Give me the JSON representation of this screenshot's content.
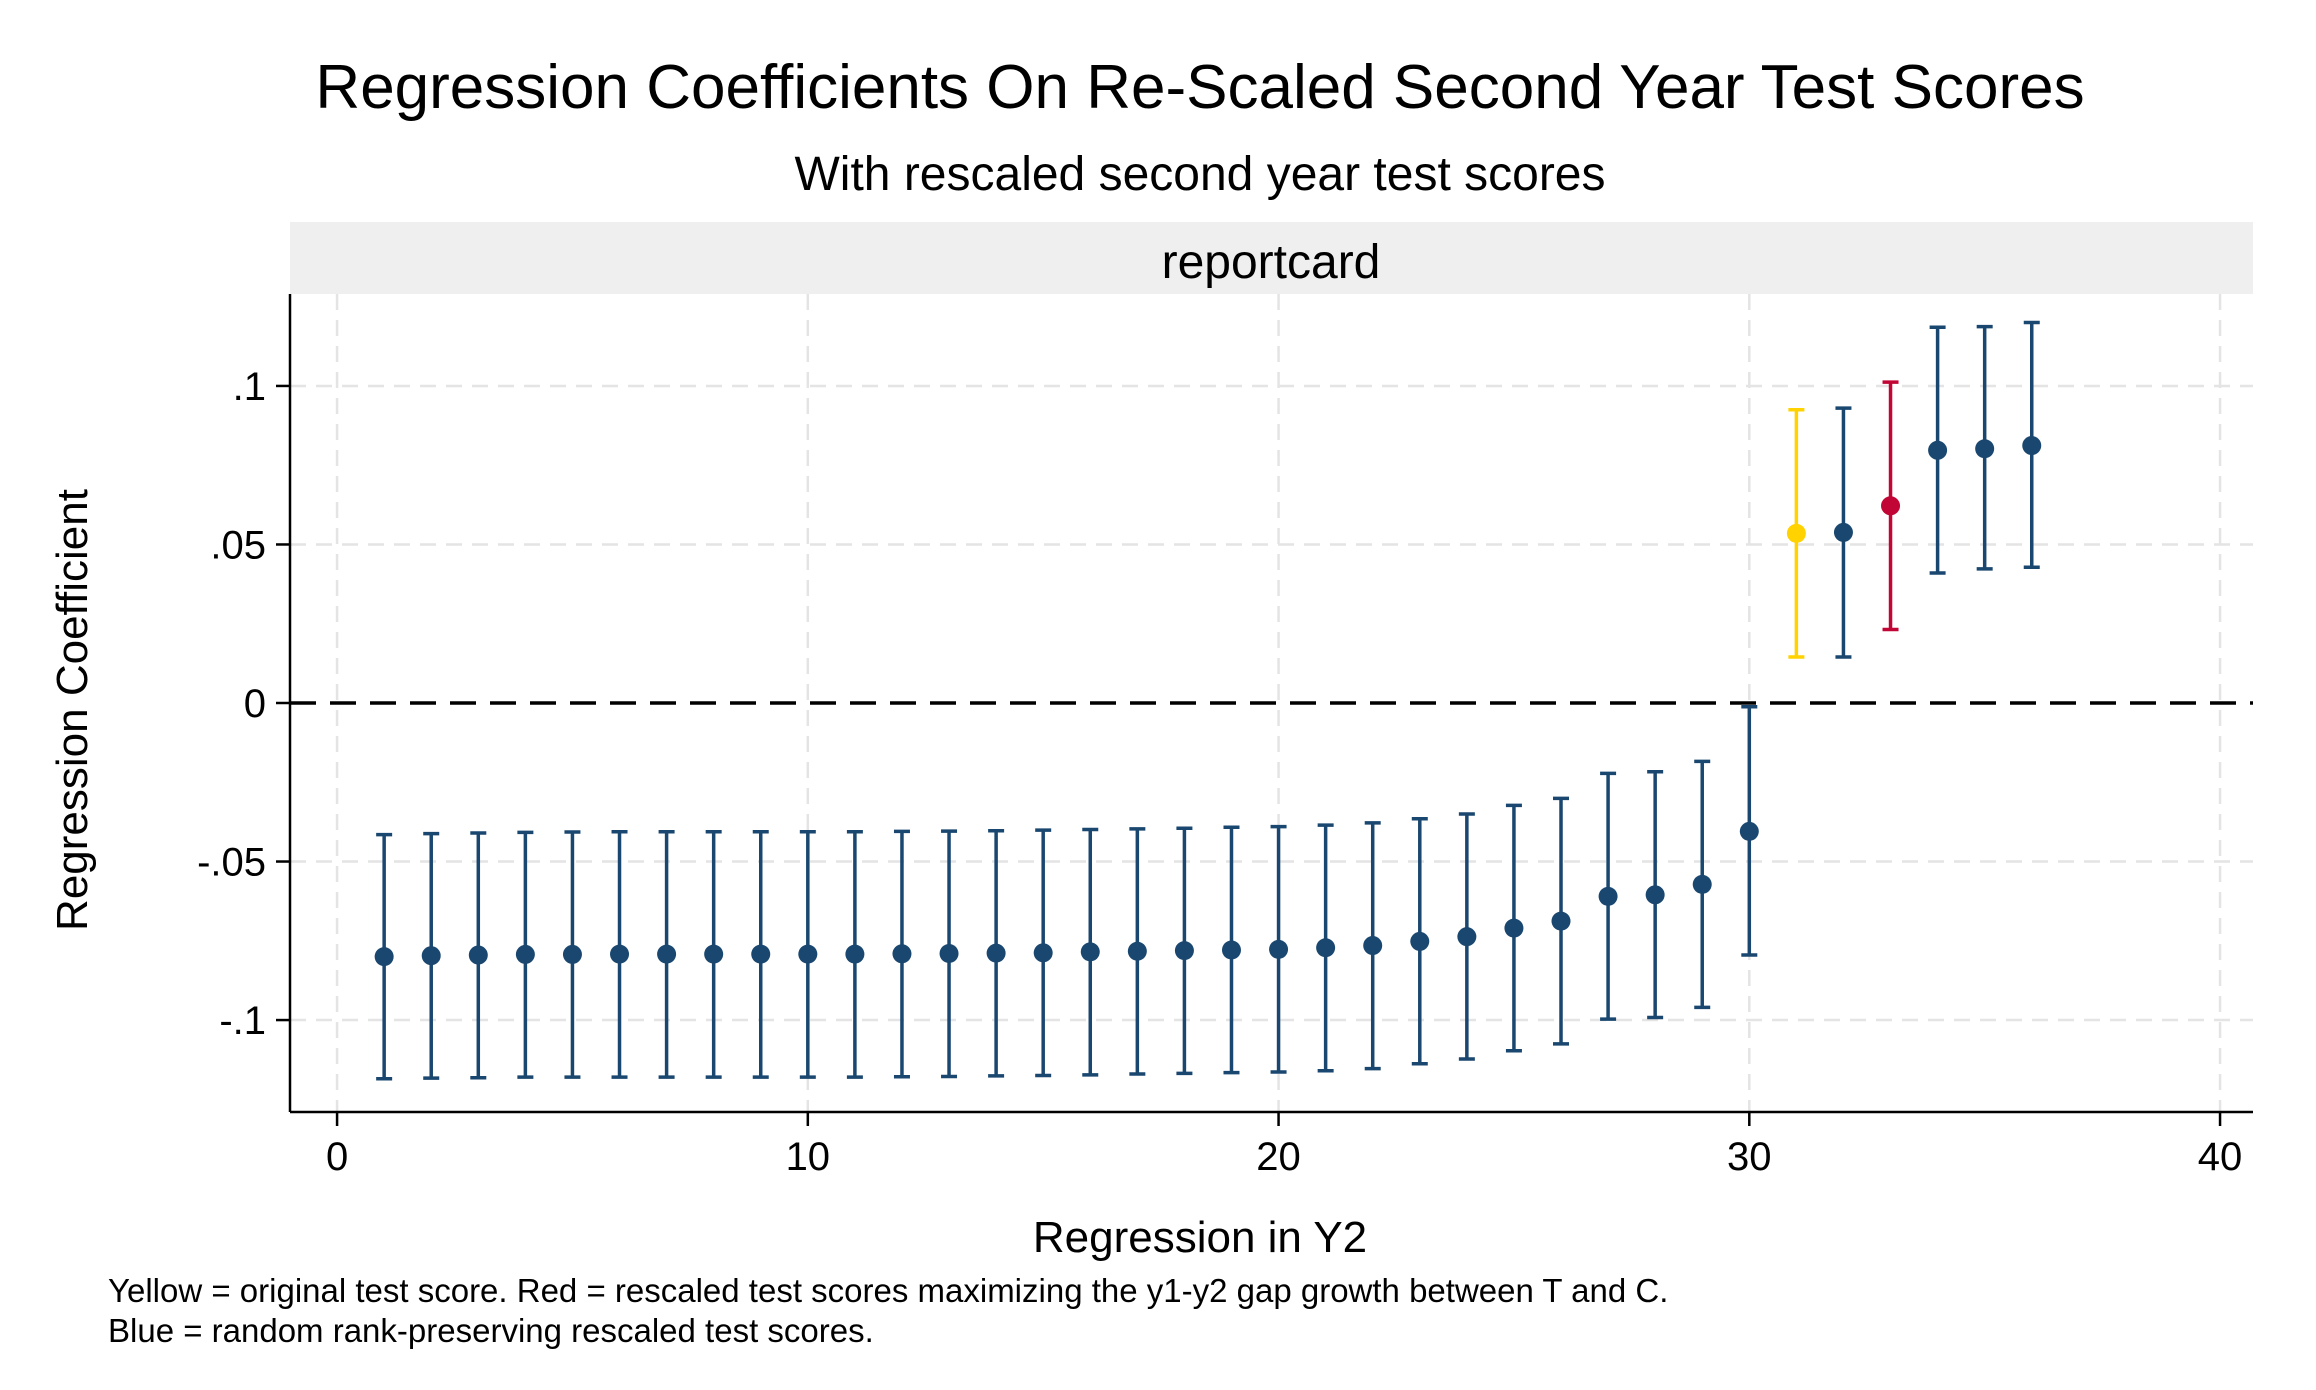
{
  "chart_data": {
    "type": "scatter",
    "title": "Regression Coefficients On Re-Scaled Second Year Test Scores",
    "subtitle": "With  rescaled second year test scores",
    "panel": "reportcard",
    "xlabel": "Regression in Y2",
    "ylabel": "Regression Coefficient",
    "xlim": [
      -1,
      40.7
    ],
    "ylim": [
      -0.129,
      0.129
    ],
    "xticks": [
      0,
      10,
      20,
      30,
      40
    ],
    "xtick_labels": [
      "0",
      "10",
      "20",
      "30",
      "40"
    ],
    "yticks": [
      -0.1,
      -0.05,
      0,
      0.05,
      0.1
    ],
    "ytick_labels": [
      "-.1",
      "-.05",
      "0",
      ".05",
      ".1"
    ],
    "grid": true,
    "reference_line": 0,
    "colors": {
      "blue": "#1a476f",
      "yellow": "#ffd200",
      "red": "#c10534",
      "grid": "#e4e4e4",
      "strip": "#efefef"
    },
    "points": [
      {
        "x": 1,
        "y": -0.08,
        "lo": -0.1185,
        "hi": -0.0415,
        "group": "blue"
      },
      {
        "x": 2,
        "y": -0.0797,
        "lo": -0.1183,
        "hi": -0.0412,
        "group": "blue"
      },
      {
        "x": 3,
        "y": -0.0795,
        "lo": -0.1182,
        "hi": -0.041,
        "group": "blue"
      },
      {
        "x": 4,
        "y": -0.0793,
        "lo": -0.118,
        "hi": -0.0408,
        "group": "blue"
      },
      {
        "x": 5,
        "y": -0.0793,
        "lo": -0.118,
        "hi": -0.0407,
        "group": "blue"
      },
      {
        "x": 6,
        "y": -0.0792,
        "lo": -0.118,
        "hi": -0.0406,
        "group": "blue"
      },
      {
        "x": 7,
        "y": -0.0792,
        "lo": -0.118,
        "hi": -0.0406,
        "group": "blue"
      },
      {
        "x": 8,
        "y": -0.0792,
        "lo": -0.118,
        "hi": -0.0406,
        "group": "blue"
      },
      {
        "x": 9,
        "y": -0.0792,
        "lo": -0.118,
        "hi": -0.0406,
        "group": "blue"
      },
      {
        "x": 10,
        "y": -0.0792,
        "lo": -0.118,
        "hi": -0.0406,
        "group": "blue"
      },
      {
        "x": 11,
        "y": -0.0792,
        "lo": -0.118,
        "hi": -0.0406,
        "group": "blue"
      },
      {
        "x": 12,
        "y": -0.0791,
        "lo": -0.1179,
        "hi": -0.0405,
        "group": "blue"
      },
      {
        "x": 13,
        "y": -0.079,
        "lo": -0.1178,
        "hi": -0.0404,
        "group": "blue"
      },
      {
        "x": 14,
        "y": -0.0789,
        "lo": -0.1176,
        "hi": -0.0403,
        "group": "blue"
      },
      {
        "x": 15,
        "y": -0.0788,
        "lo": -0.1175,
        "hi": -0.0401,
        "group": "blue"
      },
      {
        "x": 16,
        "y": -0.0785,
        "lo": -0.1173,
        "hi": -0.0399,
        "group": "blue"
      },
      {
        "x": 17,
        "y": -0.0783,
        "lo": -0.117,
        "hi": -0.0397,
        "group": "blue"
      },
      {
        "x": 18,
        "y": -0.0781,
        "lo": -0.1168,
        "hi": -0.0395,
        "group": "blue"
      },
      {
        "x": 19,
        "y": -0.0779,
        "lo": -0.1166,
        "hi": -0.0392,
        "group": "blue"
      },
      {
        "x": 20,
        "y": -0.0777,
        "lo": -0.1164,
        "hi": -0.039,
        "group": "blue"
      },
      {
        "x": 21,
        "y": -0.0772,
        "lo": -0.116,
        "hi": -0.0385,
        "group": "blue"
      },
      {
        "x": 22,
        "y": -0.0765,
        "lo": -0.1153,
        "hi": -0.0378,
        "group": "blue"
      },
      {
        "x": 23,
        "y": -0.0752,
        "lo": -0.1138,
        "hi": -0.0365,
        "group": "blue"
      },
      {
        "x": 24,
        "y": -0.0737,
        "lo": -0.1123,
        "hi": -0.035,
        "group": "blue"
      },
      {
        "x": 25,
        "y": -0.071,
        "lo": -0.1097,
        "hi": -0.0323,
        "group": "blue"
      },
      {
        "x": 26,
        "y": -0.0688,
        "lo": -0.1075,
        "hi": -0.0301,
        "group": "blue"
      },
      {
        "x": 27,
        "y": -0.061,
        "lo": -0.0997,
        "hi": -0.0222,
        "group": "blue"
      },
      {
        "x": 28,
        "y": -0.0605,
        "lo": -0.0992,
        "hi": -0.0217,
        "group": "blue"
      },
      {
        "x": 29,
        "y": -0.0572,
        "lo": -0.096,
        "hi": -0.0184,
        "group": "blue"
      },
      {
        "x": 30,
        "y": -0.0405,
        "lo": -0.0795,
        "hi": -0.0012,
        "group": "blue"
      },
      {
        "x": 31,
        "y": 0.0535,
        "lo": 0.0145,
        "hi": 0.0925,
        "group": "yellow"
      },
      {
        "x": 32,
        "y": 0.0538,
        "lo": 0.0145,
        "hi": 0.093,
        "group": "blue"
      },
      {
        "x": 33,
        "y": 0.0622,
        "lo": 0.0232,
        "hi": 0.1012,
        "group": "red"
      },
      {
        "x": 34,
        "y": 0.0797,
        "lo": 0.041,
        "hi": 0.1185,
        "group": "blue"
      },
      {
        "x": 35,
        "y": 0.0802,
        "lo": 0.0423,
        "hi": 0.1187,
        "group": "blue"
      },
      {
        "x": 36,
        "y": 0.0812,
        "lo": 0.0428,
        "hi": 0.12,
        "group": "blue"
      }
    ],
    "notes": [
      "Yellow = original test score. Red = rescaled test scores maximizing the y1-y2 gap growth between T and C.",
      "Blue = random rank-preserving rescaled test scores."
    ]
  }
}
